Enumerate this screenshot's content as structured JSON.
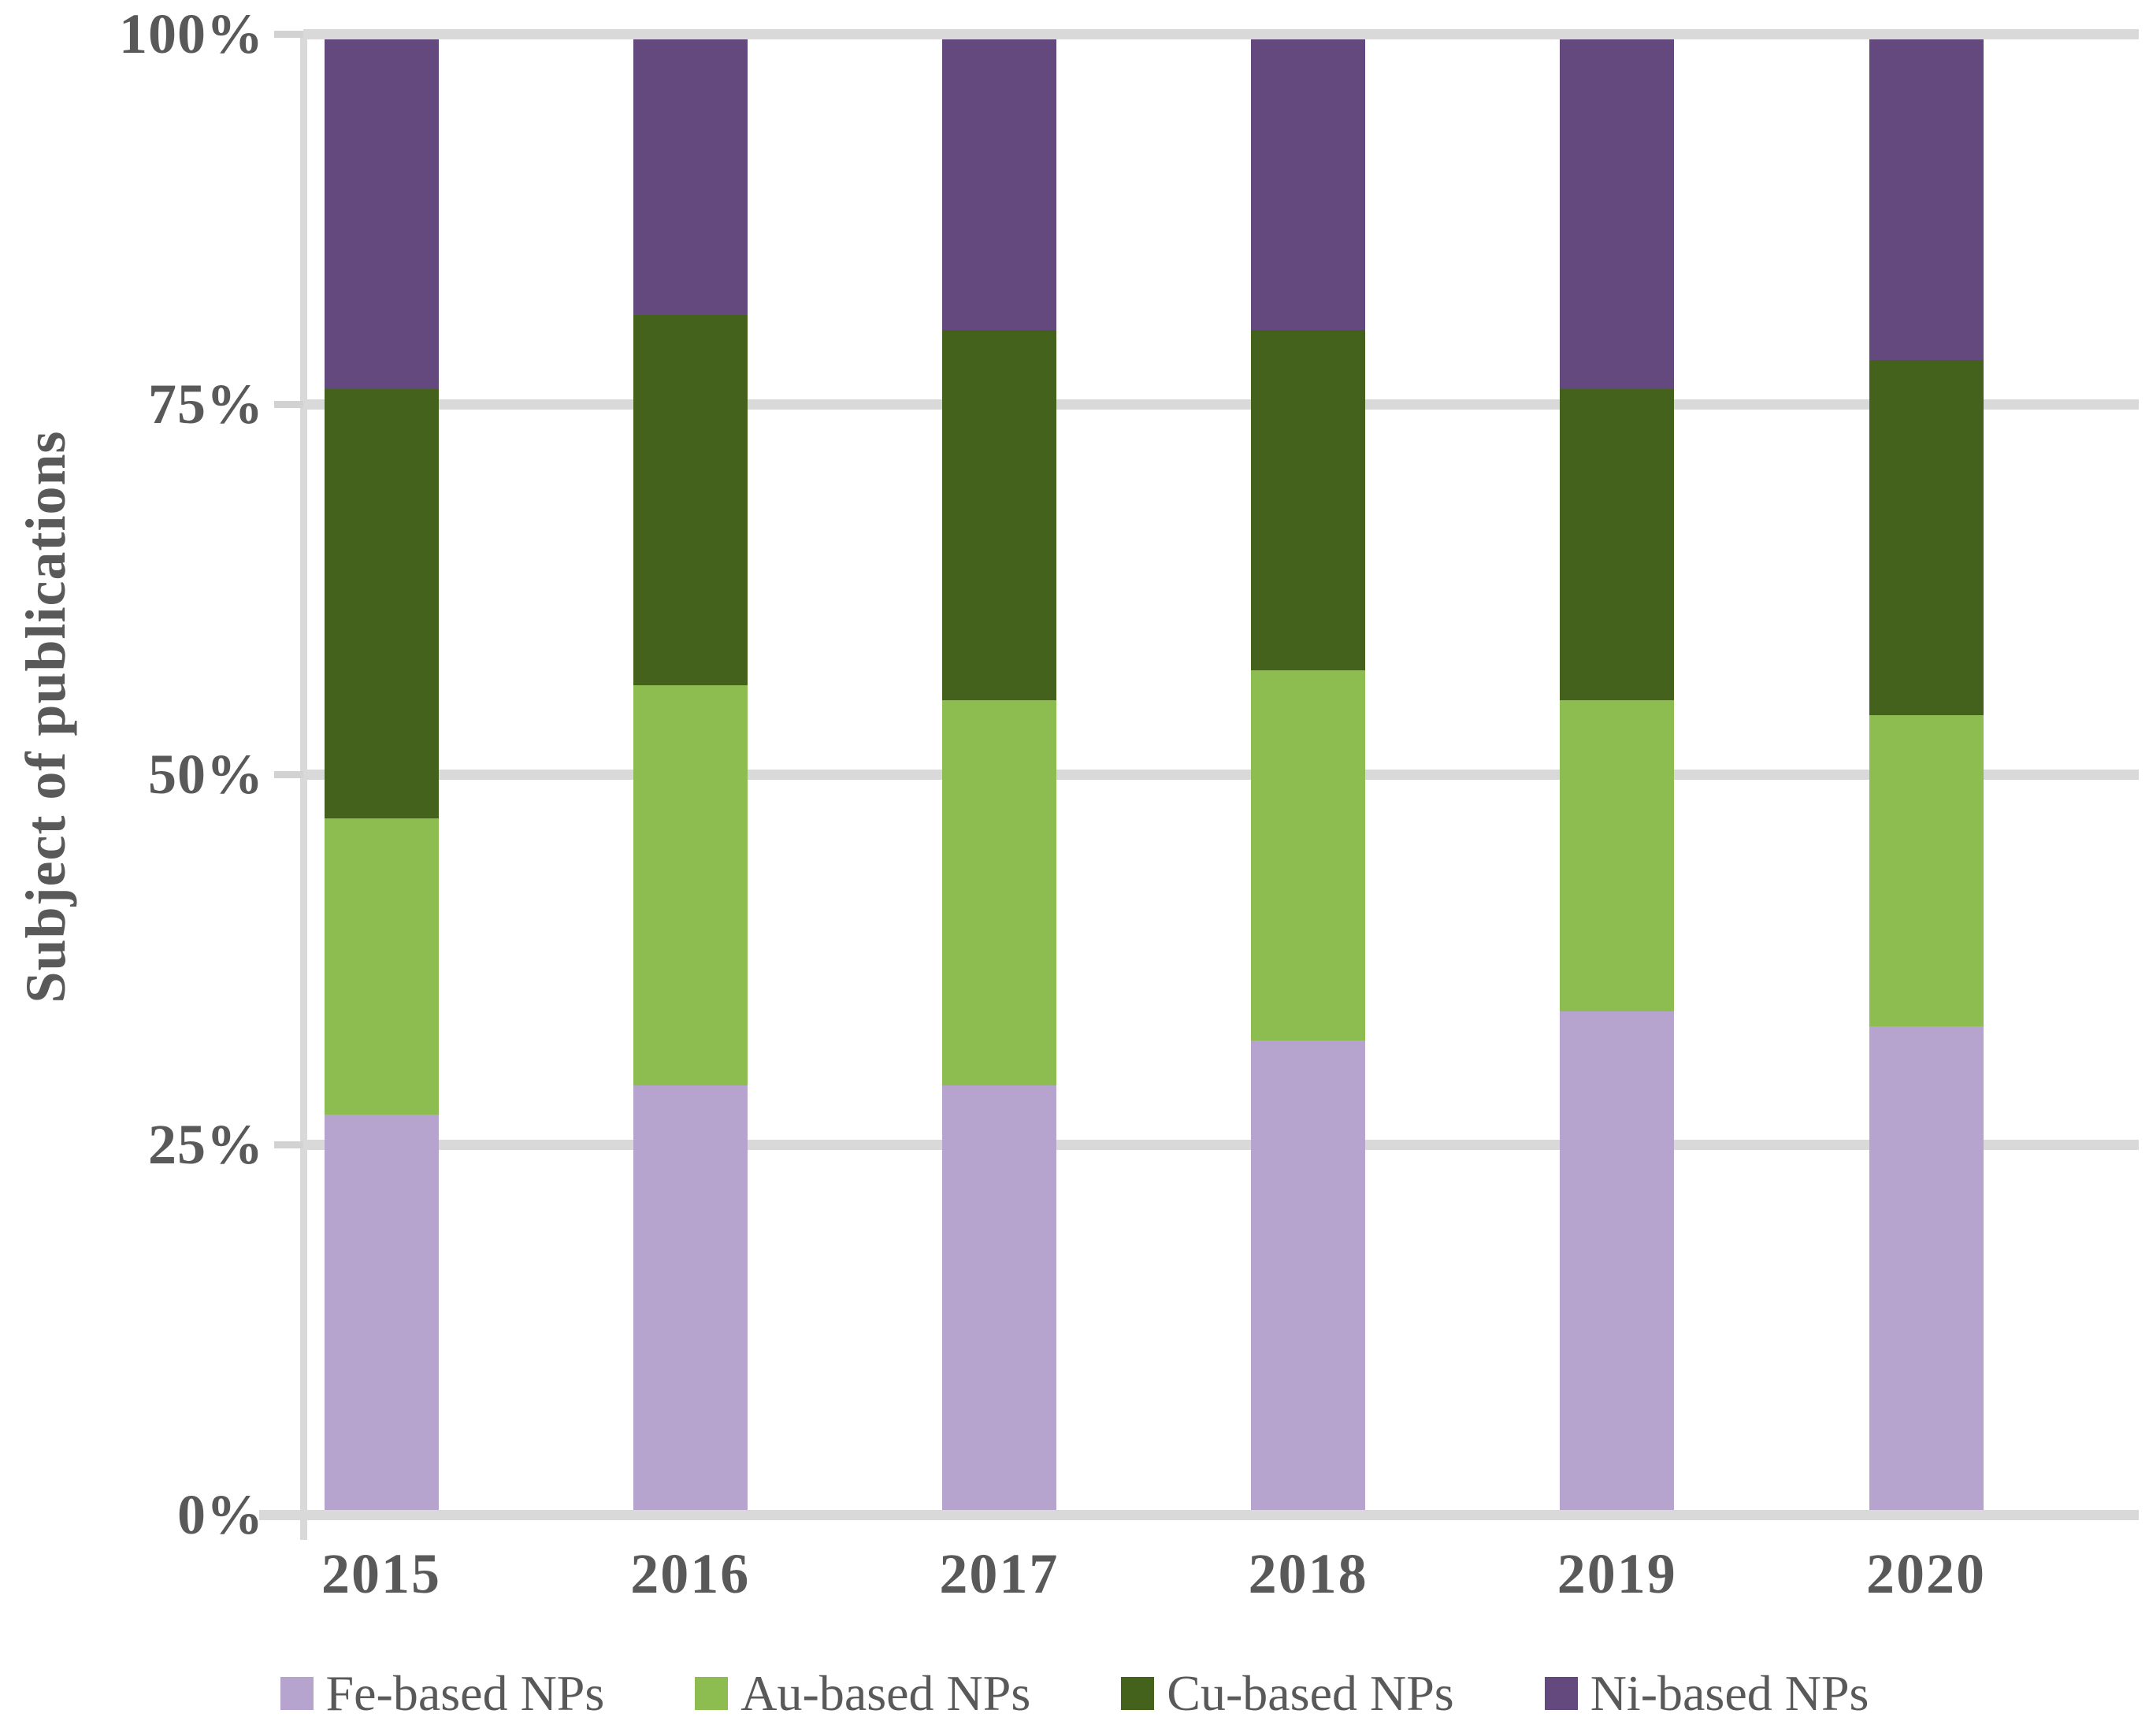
{
  "figure": {
    "background": "#ffffff"
  },
  "chart_data": {
    "type": "bar",
    "variant": "stacked-100-percent-column",
    "title": "",
    "xlabel": "",
    "ylabel": "Subject of publications",
    "categories": [
      "2015",
      "2016",
      "2017",
      "2018",
      "2019",
      "2020"
    ],
    "series": [
      {
        "key": "fe",
        "name": "Fe-based NPs",
        "color": "#b7a4ce",
        "values": [
          27,
          29,
          29,
          32,
          34,
          33
        ]
      },
      {
        "key": "au",
        "name": "Au-based NPs",
        "color": "#8dbd50",
        "values": [
          20,
          27,
          26,
          25,
          21,
          21
        ]
      },
      {
        "key": "cu",
        "name": "Cu-based NPs",
        "color": "#45621d",
        "values": [
          29,
          25,
          25,
          23,
          21,
          24
        ]
      },
      {
        "key": "ni",
        "name": "Ni-based NPs",
        "color": "#64497e",
        "values": [
          24,
          19,
          20,
          20,
          24,
          22
        ]
      }
    ],
    "y_axis": {
      "tick_labels": [
        "0%",
        "25%",
        "50%",
        "75%",
        "100%"
      ],
      "tick_values": [
        0,
        25,
        50,
        75,
        100
      ],
      "range": [
        0,
        100
      ],
      "unit": "percent",
      "grid": true
    },
    "legend": {
      "position": "bottom",
      "labels": [
        "Fe-based NPs",
        "Au-based NPs",
        "Cu-based NPs",
        "Ni-based NPs"
      ]
    },
    "style": {
      "grid_color": "#d9d9d9",
      "axis_color": "#d9d9d9",
      "tick_color": "#d2d2d2",
      "text_color": "#595959"
    }
  }
}
